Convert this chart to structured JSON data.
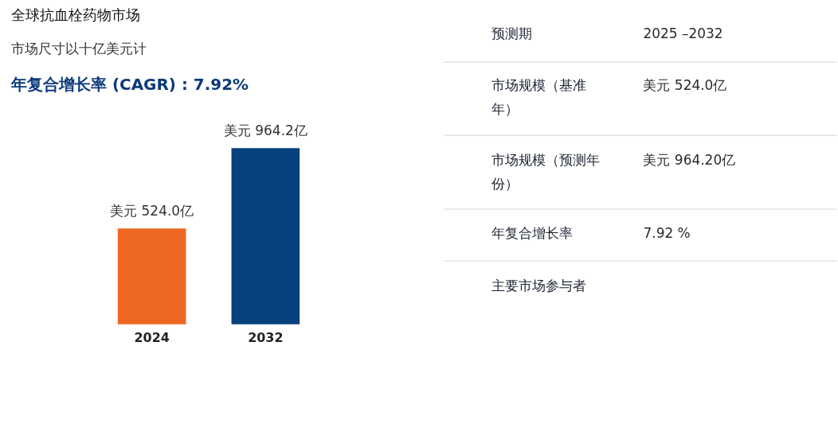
{
  "chart_data": [
    {
      "type": "bar",
      "title": "全球抗血栓药物市场",
      "subtitle": "市场尺寸以十亿美元计",
      "annotations": [
        "年复合增长率 (CAGR) : 7.92%"
      ],
      "categories": [
        "2024",
        "2032"
      ],
      "values": [
        524.0,
        964.2
      ],
      "colors": [
        "#ee6722",
        "#07417d"
      ],
      "value_labels": [
        "美元 524.0亿",
        "美元 964.2亿"
      ],
      "tick_labels": "x"
    },
    {
      "type": "other",
      "annotations": [
        "预测期",
        "2025 –2032",
        "市场规模（基准年）",
        "美元 524.0亿",
        "市场规模（预测年份）",
        "美元 964.20亿",
        "年复合增长率",
        "7.92 %",
        "主要市场参与者"
      ]
    }
  ]
}
